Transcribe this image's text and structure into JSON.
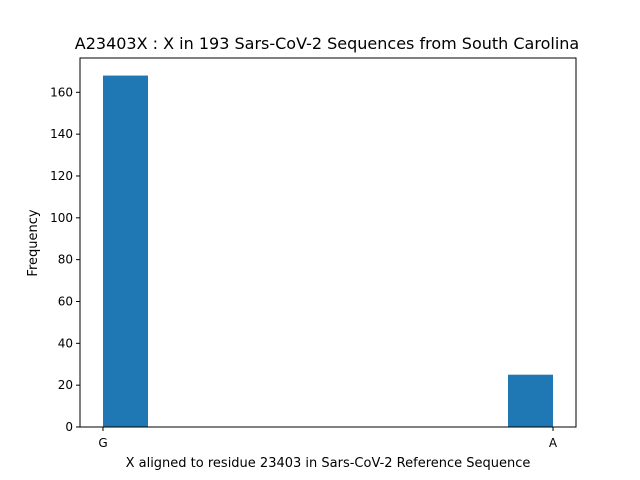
{
  "chart_data": {
    "type": "bar",
    "title": "A23403X : X in 193 Sars-CoV-2 Sequences from South Carolina",
    "xlabel": "X aligned to residue 23403 in Sars-CoV-2 Reference Sequence",
    "ylabel": "Frequency",
    "categories": [
      "G",
      "A"
    ],
    "values": [
      168,
      25
    ],
    "ylim": [
      0,
      176.4
    ],
    "yticks": [
      0,
      20,
      40,
      60,
      80,
      100,
      120,
      140,
      160
    ],
    "grid": false,
    "legend": "none",
    "bar_color": "#1f77b4"
  }
}
